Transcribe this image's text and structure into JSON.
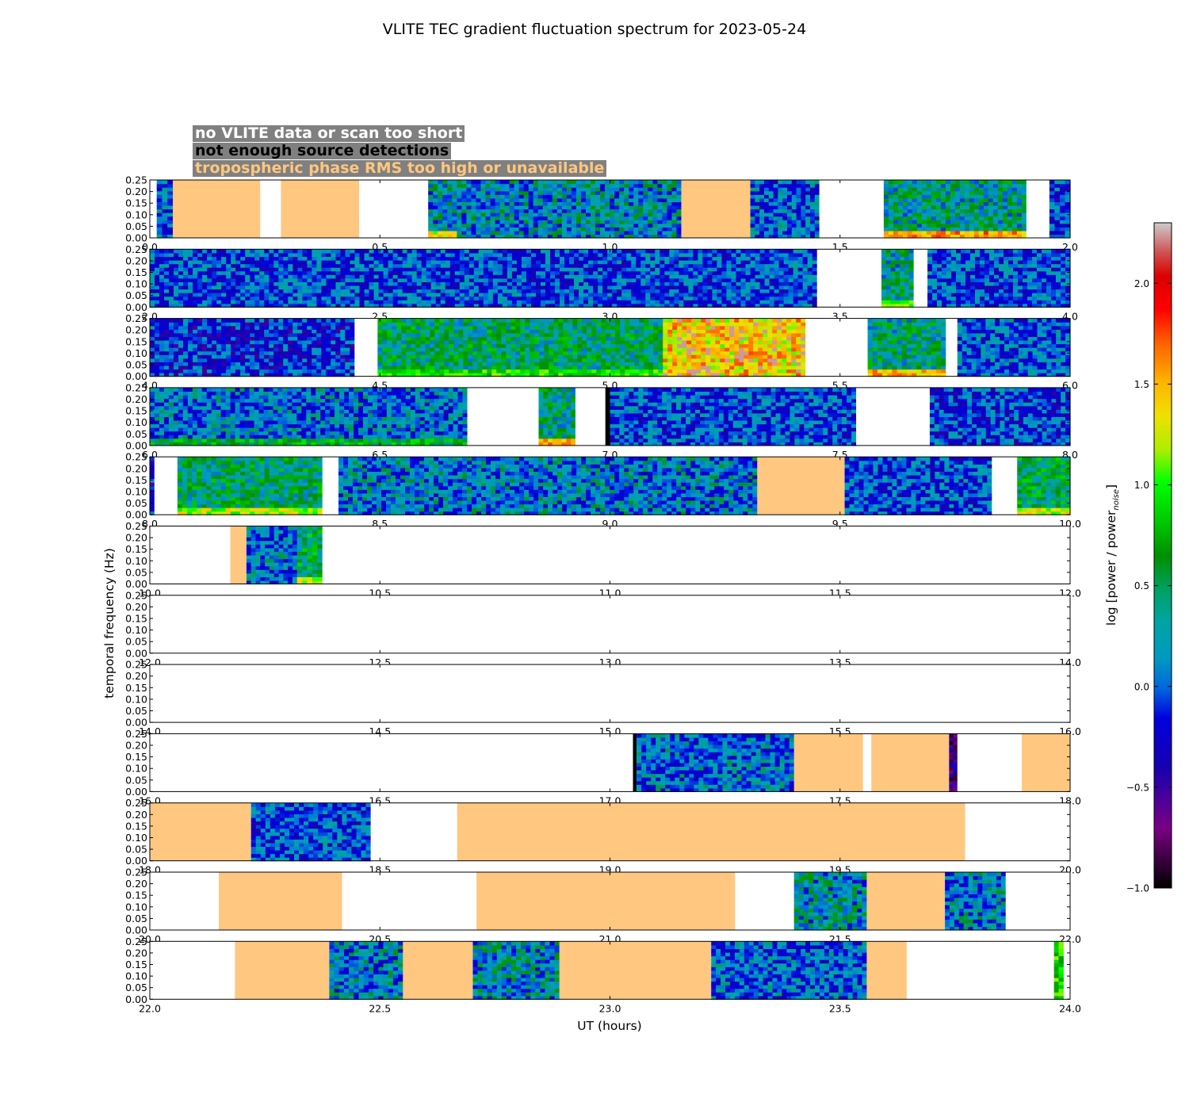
{
  "chart_data": {
    "type": "heatmap",
    "title": "VLITE TEC gradient fluctuation spectrum for 2023-05-24",
    "xlabel": "UT (hours)",
    "ylabel": "temporal frequency (Hz)",
    "ylim": [
      0,
      0.25
    ],
    "yticks": [
      "0.00",
      "0.05",
      "0.10",
      "0.15",
      "0.20",
      "0.25"
    ],
    "colorbar": {
      "label_main": "log [power / power",
      "label_sub": "noise",
      "label_end": "]",
      "ticks": [
        "−1.0",
        "−0.5",
        "0.0",
        "0.5",
        "1.0",
        "1.5",
        "2.0"
      ],
      "tick_values": [
        -1.0,
        -0.5,
        0.0,
        0.5,
        1.0,
        1.5,
        2.0
      ],
      "range": [
        -1.0,
        2.3
      ]
    },
    "legend": [
      {
        "label": "no VLITE data or scan too short",
        "color": "#ffffff"
      },
      {
        "label": "not enough source detections",
        "color": "#000000"
      },
      {
        "label": "tropospheric phase RMS too high or unavailable",
        "color": "#ffc77f"
      }
    ],
    "flag_colors": {
      "no_data": "#ffffff",
      "no_detections": "#000000",
      "tropo": "#ffc77f"
    },
    "panels": [
      {
        "xlim": [
          0,
          2
        ],
        "xticks": [
          "0.0",
          "0.5",
          "1.0",
          "1.5",
          "2.0"
        ],
        "segments": [
          {
            "start": 0.0,
            "end": 0.015,
            "state": "no_data"
          },
          {
            "start": 0.015,
            "end": 0.05,
            "state": "data",
            "level": 0.0
          },
          {
            "start": 0.05,
            "end": 0.24,
            "state": "tropo"
          },
          {
            "start": 0.24,
            "end": 0.285,
            "state": "no_data"
          },
          {
            "start": 0.285,
            "end": 0.455,
            "state": "tropo"
          },
          {
            "start": 0.455,
            "end": 0.605,
            "state": "no_data"
          },
          {
            "start": 0.605,
            "end": 1.155,
            "state": "data",
            "level": 0.15,
            "low": 1.3,
            "lowEnd": 0.665
          },
          {
            "start": 1.155,
            "end": 1.305,
            "state": "tropo"
          },
          {
            "start": 1.305,
            "end": 1.455,
            "state": "data",
            "level": 0.0
          },
          {
            "start": 1.455,
            "end": 1.595,
            "state": "no_data"
          },
          {
            "start": 1.595,
            "end": 1.905,
            "state": "data",
            "level": 0.3,
            "low": 1.6
          },
          {
            "start": 1.905,
            "end": 1.955,
            "state": "no_data"
          },
          {
            "start": 1.955,
            "end": 2.0,
            "state": "data",
            "level": -0.1
          }
        ]
      },
      {
        "xlim": [
          2,
          4
        ],
        "xticks": [
          "2.0",
          "2.5",
          "3.0",
          "3.5",
          "4.0"
        ],
        "segments": [
          {
            "start": 2.0,
            "end": 3.45,
            "state": "data",
            "level": -0.05
          },
          {
            "start": 3.45,
            "end": 3.59,
            "state": "no_data"
          },
          {
            "start": 3.59,
            "end": 3.66,
            "state": "data",
            "level": 0.3,
            "low": 1.0
          },
          {
            "start": 3.66,
            "end": 3.69,
            "state": "no_data"
          },
          {
            "start": 3.69,
            "end": 4.0,
            "state": "data",
            "level": -0.05
          }
        ]
      },
      {
        "xlim": [
          4,
          6
        ],
        "xticks": [
          "4.0",
          "4.5",
          "5.0",
          "5.5",
          "6.0"
        ],
        "segments": [
          {
            "start": 4.0,
            "end": 4.445,
            "state": "data",
            "level": -0.15
          },
          {
            "start": 4.445,
            "end": 4.495,
            "state": "no_data"
          },
          {
            "start": 4.495,
            "end": 5.115,
            "state": "data",
            "level": 0.4,
            "low": 0.9
          },
          {
            "start": 5.115,
            "end": 5.425,
            "state": "data",
            "level": 1.45
          },
          {
            "start": 5.425,
            "end": 5.56,
            "state": "no_data"
          },
          {
            "start": 5.56,
            "end": 5.73,
            "state": "data",
            "level": 0.35,
            "low": 1.5
          },
          {
            "start": 5.73,
            "end": 5.755,
            "state": "no_data"
          },
          {
            "start": 5.755,
            "end": 6.0,
            "state": "data",
            "level": 0.0
          }
        ]
      },
      {
        "xlim": [
          6,
          8
        ],
        "xticks": [
          "6.0",
          "6.5",
          "7.0",
          "7.5",
          "8.0"
        ],
        "segments": [
          {
            "start": 6.0,
            "end": 6.69,
            "state": "data",
            "level": 0.05,
            "low": 0.6
          },
          {
            "start": 6.69,
            "end": 6.845,
            "state": "no_data"
          },
          {
            "start": 6.845,
            "end": 6.925,
            "state": "data",
            "level": 0.35,
            "low": 1.5
          },
          {
            "start": 6.925,
            "end": 6.99,
            "state": "no_data"
          },
          {
            "start": 6.99,
            "end": 7.0,
            "state": "no_detections"
          },
          {
            "start": 7.0,
            "end": 7.535,
            "state": "data",
            "level": -0.05
          },
          {
            "start": 7.535,
            "end": 7.695,
            "state": "no_data"
          },
          {
            "start": 7.695,
            "end": 8.0,
            "state": "data",
            "level": -0.1
          }
        ]
      },
      {
        "xlim": [
          8,
          10
        ],
        "xticks": [
          "8.0",
          "8.5",
          "9.0",
          "9.5",
          "10.0"
        ],
        "segments": [
          {
            "start": 8.0,
            "end": 8.01,
            "state": "data",
            "level": -0.2
          },
          {
            "start": 8.01,
            "end": 8.06,
            "state": "no_data"
          },
          {
            "start": 8.06,
            "end": 8.375,
            "state": "data",
            "level": 0.4,
            "low": 1.2
          },
          {
            "start": 8.375,
            "end": 8.41,
            "state": "no_data"
          },
          {
            "start": 8.41,
            "end": 9.32,
            "state": "data",
            "level": 0.1
          },
          {
            "start": 9.32,
            "end": 9.51,
            "state": "tropo"
          },
          {
            "start": 9.51,
            "end": 9.83,
            "state": "data",
            "level": -0.05
          },
          {
            "start": 9.83,
            "end": 9.885,
            "state": "no_data"
          },
          {
            "start": 9.885,
            "end": 10.0,
            "state": "data",
            "level": 0.45,
            "low": 1.3
          }
        ]
      },
      {
        "xlim": [
          10,
          12
        ],
        "xticks": [
          "10.0",
          "10.5",
          "11.0",
          "11.5",
          "12.0"
        ],
        "segments": [
          {
            "start": 10.0,
            "end": 10.175,
            "state": "no_data"
          },
          {
            "start": 10.175,
            "end": 10.21,
            "state": "tropo"
          },
          {
            "start": 10.21,
            "end": 10.32,
            "state": "data",
            "level": 0.05
          },
          {
            "start": 10.32,
            "end": 10.375,
            "state": "data",
            "level": 0.5,
            "low": 1.3
          },
          {
            "start": 10.375,
            "end": 12.0,
            "state": "no_data"
          }
        ]
      },
      {
        "xlim": [
          12,
          14
        ],
        "xticks": [
          "12.0",
          "12.5",
          "13.0",
          "13.5",
          "14.0"
        ],
        "segments": [
          {
            "start": 12.0,
            "end": 14.0,
            "state": "no_data"
          }
        ]
      },
      {
        "xlim": [
          14,
          16
        ],
        "xticks": [
          "14.0",
          "14.5",
          "15.0",
          "15.5",
          "16.0"
        ],
        "segments": [
          {
            "start": 14.0,
            "end": 16.0,
            "state": "no_data"
          }
        ]
      },
      {
        "xlim": [
          16,
          18
        ],
        "xticks": [
          "16.0",
          "16.5",
          "17.0",
          "17.5",
          "18.0"
        ],
        "segments": [
          {
            "start": 16.0,
            "end": 17.05,
            "state": "no_data"
          },
          {
            "start": 17.05,
            "end": 17.058,
            "state": "no_detections"
          },
          {
            "start": 17.058,
            "end": 17.4,
            "state": "data",
            "level": 0.05
          },
          {
            "start": 17.4,
            "end": 17.55,
            "state": "tropo"
          },
          {
            "start": 17.55,
            "end": 17.568,
            "state": "no_data"
          },
          {
            "start": 17.568,
            "end": 17.737,
            "state": "tropo"
          },
          {
            "start": 17.737,
            "end": 17.755,
            "state": "data",
            "level": -0.6
          },
          {
            "start": 17.755,
            "end": 17.895,
            "state": "no_data"
          },
          {
            "start": 17.895,
            "end": 18.0,
            "state": "tropo"
          }
        ]
      },
      {
        "xlim": [
          18,
          20
        ],
        "xticks": [
          "18.0",
          "18.5",
          "19.0",
          "19.5",
          "20.0"
        ],
        "segments": [
          {
            "start": 18.0,
            "end": 18.22,
            "state": "tropo"
          },
          {
            "start": 18.22,
            "end": 18.48,
            "state": "data",
            "level": -0.05
          },
          {
            "start": 18.48,
            "end": 18.668,
            "state": "no_data"
          },
          {
            "start": 18.668,
            "end": 19.772,
            "state": "tropo"
          },
          {
            "start": 19.772,
            "end": 20.0,
            "state": "no_data"
          }
        ]
      },
      {
        "xlim": [
          20,
          22
        ],
        "xticks": [
          "20.0",
          "20.5",
          "21.0",
          "21.5",
          "22.0"
        ],
        "segments": [
          {
            "start": 20.0,
            "end": 20.15,
            "state": "no_data"
          },
          {
            "start": 20.15,
            "end": 20.418,
            "state": "tropo"
          },
          {
            "start": 20.418,
            "end": 20.71,
            "state": "no_data"
          },
          {
            "start": 20.71,
            "end": 21.272,
            "state": "tropo"
          },
          {
            "start": 21.272,
            "end": 21.4,
            "state": "no_data"
          },
          {
            "start": 21.4,
            "end": 21.558,
            "state": "data",
            "level": 0.2
          },
          {
            "start": 21.558,
            "end": 21.728,
            "state": "tropo"
          },
          {
            "start": 21.728,
            "end": 21.86,
            "state": "data",
            "level": 0.1
          },
          {
            "start": 21.86,
            "end": 22.0,
            "state": "no_data"
          }
        ]
      },
      {
        "xlim": [
          22,
          24
        ],
        "xticks": [
          "22.0",
          "22.5",
          "23.0",
          "23.5",
          "24.0"
        ],
        "segments": [
          {
            "start": 22.0,
            "end": 22.185,
            "state": "no_data"
          },
          {
            "start": 22.185,
            "end": 22.39,
            "state": "tropo"
          },
          {
            "start": 22.39,
            "end": 22.55,
            "state": "data",
            "level": 0.1
          },
          {
            "start": 22.55,
            "end": 22.702,
            "state": "tropo"
          },
          {
            "start": 22.702,
            "end": 22.89,
            "state": "data",
            "level": 0.2
          },
          {
            "start": 22.89,
            "end": 23.22,
            "state": "tropo"
          },
          {
            "start": 23.22,
            "end": 23.558,
            "state": "data",
            "level": 0.0
          },
          {
            "start": 23.558,
            "end": 23.645,
            "state": "tropo"
          },
          {
            "start": 23.645,
            "end": 23.965,
            "state": "no_data"
          },
          {
            "start": 23.965,
            "end": 23.985,
            "state": "data",
            "level": 0.9
          }
        ]
      }
    ]
  }
}
